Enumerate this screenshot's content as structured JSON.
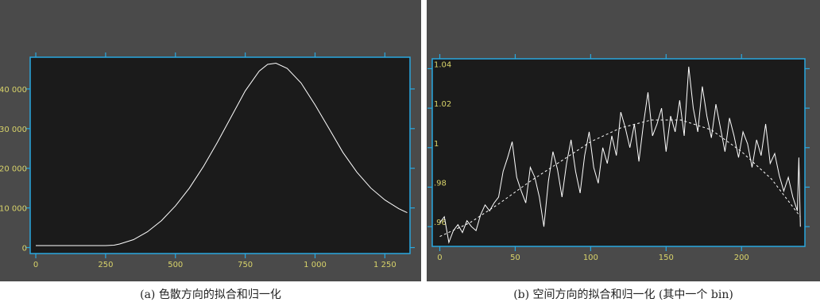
{
  "captions": {
    "a": "(a) 色散方向的拟合和归一化",
    "b": "(b) 空间方向的拟合和归一化 (其中一个 bin)"
  },
  "colors": {
    "panel_bg": "#4a4a4a",
    "plot_bg": "#1b1b1b",
    "axis": "#29a8e0",
    "tick_label": "#d8d36a",
    "header_text": "#5fbf4a",
    "curve": "#ffffff"
  },
  "chart_data": [
    {
      "type": "line",
      "panel": "a",
      "header_lines": [
        "",
        "",
        "",
        "",
        ""
      ],
      "xlabel": "",
      "ylabel": "",
      "xlim": [
        -20,
        1340
      ],
      "ylim": [
        -1500,
        48000
      ],
      "xticks": [
        0,
        250,
        500,
        750,
        1000,
        1250
      ],
      "xtick_labels": [
        "0",
        "250",
        "500",
        "750",
        "1 000",
        "1 250"
      ],
      "yticks": [
        0,
        10000,
        20000,
        30000,
        40000
      ],
      "ytick_labels": [
        "0",
        "10 000",
        "20 000",
        "30 000",
        "40 000"
      ],
      "grid": false,
      "series": [
        {
          "x": [
            0,
            50,
            100,
            150,
            200,
            250,
            280,
            300,
            350,
            400,
            450,
            500,
            550,
            600,
            650,
            700,
            750,
            800,
            830,
            860,
            900,
            950,
            1000,
            1050,
            1100,
            1150,
            1200,
            1250,
            1300,
            1330
          ],
          "values": [
            500,
            500,
            500,
            500,
            500,
            500,
            600,
            900,
            2000,
            4000,
            6800,
            10500,
            15000,
            20400,
            26500,
            33000,
            39500,
            44500,
            46200,
            46500,
            45200,
            41500,
            36000,
            30000,
            24000,
            19000,
            15000,
            12000,
            9800,
            8800
          ]
        }
      ]
    },
    {
      "type": "line",
      "panel": "b",
      "header_lines": [
        "",
        "",
        "",
        "",
        ""
      ],
      "xlabel": "",
      "ylabel": "",
      "xlim": [
        -5,
        242
      ],
      "ylim": [
        0.95,
        1.045
      ],
      "xticks": [
        0,
        50,
        100,
        150,
        200
      ],
      "xtick_labels": [
        "0",
        "50",
        "100",
        "150",
        "200"
      ],
      "yticks": [
        0.96,
        0.98,
        1.0,
        1.02,
        1.04
      ],
      "ytick_labels": [
        ".96",
        ".98",
        "1",
        "1.02",
        "1.04"
      ],
      "grid": false,
      "series": [
        {
          "x": [
            0,
            3,
            6,
            9,
            12,
            15,
            18,
            21,
            24,
            27,
            30,
            33,
            36,
            39,
            42,
            45,
            48,
            51,
            54,
            57,
            60,
            63,
            66,
            69,
            72,
            75,
            78,
            81,
            84,
            87,
            90,
            93,
            96,
            99,
            102,
            105,
            108,
            111,
            114,
            117,
            120,
            123,
            126,
            129,
            132,
            135,
            138,
            141,
            144,
            147,
            150,
            153,
            156,
            159,
            162,
            165,
            168,
            171,
            174,
            177,
            180,
            183,
            186,
            189,
            192,
            195,
            198,
            201,
            204,
            207,
            210,
            213,
            216,
            219,
            222,
            225,
            228,
            231,
            234,
            237,
            238,
            239
          ],
          "values": [
            0.962,
            0.965,
            0.952,
            0.958,
            0.961,
            0.957,
            0.963,
            0.96,
            0.958,
            0.966,
            0.971,
            0.968,
            0.972,
            0.975,
            0.988,
            0.995,
            1.003,
            0.985,
            0.978,
            0.972,
            0.99,
            0.985,
            0.975,
            0.96,
            0.983,
            0.998,
            0.989,
            0.975,
            0.992,
            1.004,
            0.988,
            0.977,
            0.996,
            1.008,
            0.99,
            0.982,
            1.0,
            0.992,
            1.006,
            0.996,
            1.018,
            1.01,
            1.0,
            1.012,
            0.993,
            1.012,
            1.028,
            1.006,
            1.012,
            1.02,
            0.998,
            1.016,
            1.008,
            1.024,
            1.006,
            1.041,
            1.02,
            1.008,
            1.031,
            1.016,
            1.005,
            1.022,
            1.01,
            0.998,
            1.015,
            1.006,
            0.995,
            1.008,
            1.002,
            0.99,
            1.004,
            0.996,
            1.012,
            0.992,
            0.997,
            0.986,
            0.978,
            0.985,
            0.975,
            0.968,
            0.995,
            0.96
          ]
        },
        {
          "x": [
            0,
            20,
            40,
            60,
            80,
            100,
            120,
            140,
            160,
            180,
            200,
            220,
            239
          ],
          "values": [
            0.955,
            0.962,
            0.972,
            0.983,
            0.993,
            1.003,
            1.01,
            1.014,
            1.014,
            1.009,
            0.998,
            0.984,
            0.965
          ],
          "style": "dashed"
        }
      ]
    }
  ]
}
